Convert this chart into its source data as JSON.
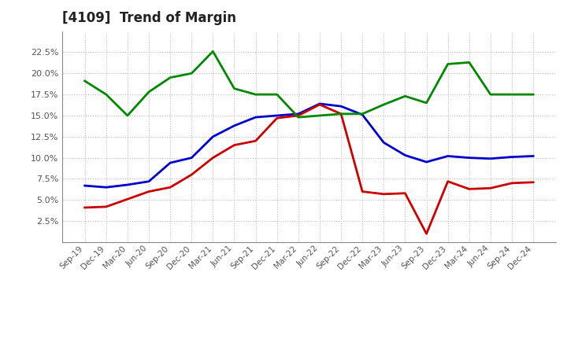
{
  "title": "[4109]  Trend of Margin",
  "x_labels": [
    "Sep-19",
    "Dec-19",
    "Mar-20",
    "Jun-20",
    "Sep-20",
    "Dec-20",
    "Mar-21",
    "Jun-21",
    "Sep-21",
    "Dec-21",
    "Mar-22",
    "Jun-22",
    "Sep-22",
    "Dec-22",
    "Mar-23",
    "Jun-23",
    "Sep-23",
    "Dec-23",
    "Mar-24",
    "Jun-24",
    "Sep-24",
    "Dec-24"
  ],
  "ordinary_income": [
    0.067,
    0.065,
    0.068,
    0.072,
    0.094,
    0.1,
    0.125,
    0.138,
    0.148,
    0.15,
    0.152,
    0.164,
    0.161,
    0.151,
    0.118,
    0.103,
    0.095,
    0.102,
    0.1,
    0.099,
    0.101,
    0.102
  ],
  "net_income": [
    0.041,
    0.042,
    0.051,
    0.06,
    0.065,
    0.08,
    0.1,
    0.115,
    0.12,
    0.147,
    0.15,
    0.163,
    0.152,
    0.06,
    0.057,
    0.058,
    0.01,
    0.072,
    0.063,
    0.064,
    0.07,
    0.071
  ],
  "operating_cashflow": [
    0.191,
    0.175,
    0.15,
    0.178,
    0.195,
    0.2,
    0.226,
    0.182,
    0.175,
    0.175,
    0.148,
    0.15,
    0.152,
    0.152,
    0.163,
    0.173,
    0.165,
    0.211,
    0.213,
    0.175,
    0.175,
    0.175
  ],
  "ordinary_income_color": "#0000cc",
  "net_income_color": "#cc0000",
  "operating_cashflow_color": "#008800",
  "ylim": [
    0.0,
    0.25
  ],
  "yticks": [
    0.025,
    0.05,
    0.075,
    0.1,
    0.125,
    0.15,
    0.175,
    0.2,
    0.225
  ],
  "background_color": "#ffffff",
  "grid_color": "#bbbbbb"
}
